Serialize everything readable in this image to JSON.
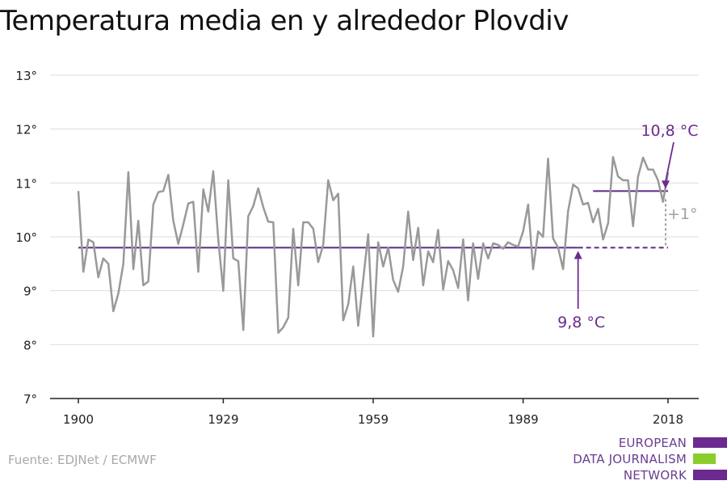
{
  "title": "Temperatura media en y alrededor Plovdiv",
  "source": "Fuente: EDJNet / ECMWF",
  "logo": {
    "line1": "EUROPEAN",
    "line2": "DATA JOURNALISM",
    "line3": "NETWORK",
    "color_purple": "#6b2a90",
    "color_green": "#8ccd2d"
  },
  "colors": {
    "series": "#999999",
    "baseline": "#5b2a86",
    "annotation_purple": "#6b2a90",
    "annotation_grey": "#a0a0a0",
    "grid": "#dddddd",
    "axis_text": "#222222"
  },
  "chart_data": {
    "type": "line",
    "title": "Temperatura media en y alrededor Plovdiv",
    "xlabel": "",
    "ylabel": "",
    "xlim": [
      1900,
      2018
    ],
    "ylim": [
      7,
      13
    ],
    "yticks": [
      7,
      8,
      9,
      10,
      11,
      12,
      13
    ],
    "ytick_labels": [
      "7°",
      "8°",
      "9°",
      "10°",
      "11°",
      "12°",
      "13°"
    ],
    "xticks": [
      1900,
      1929,
      1959,
      1989,
      2018
    ],
    "xtick_labels": [
      "1900",
      "1929",
      "1959",
      "1989",
      "2018"
    ],
    "grid": true,
    "series": [
      {
        "values": [
          [
            1900,
            10.85
          ],
          [
            1901,
            9.35
          ],
          [
            1902,
            9.95
          ],
          [
            1903,
            9.9
          ],
          [
            1904,
            9.25
          ],
          [
            1905,
            9.6
          ],
          [
            1906,
            9.5
          ],
          [
            1907,
            8.62
          ],
          [
            1908,
            8.95
          ],
          [
            1909,
            9.5
          ],
          [
            1910,
            11.2
          ],
          [
            1911,
            9.4
          ],
          [
            1912,
            10.3
          ],
          [
            1913,
            9.1
          ],
          [
            1914,
            9.17
          ],
          [
            1915,
            10.6
          ],
          [
            1916,
            10.83
          ],
          [
            1917,
            10.85
          ],
          [
            1918,
            11.15
          ],
          [
            1919,
            10.3
          ],
          [
            1920,
            9.87
          ],
          [
            1921,
            10.23
          ],
          [
            1922,
            10.62
          ],
          [
            1923,
            10.65
          ],
          [
            1924,
            9.35
          ],
          [
            1925,
            10.88
          ],
          [
            1926,
            10.47
          ],
          [
            1927,
            11.22
          ],
          [
            1928,
            9.95
          ],
          [
            1929,
            9.0
          ],
          [
            1930,
            11.05
          ],
          [
            1931,
            9.6
          ],
          [
            1932,
            9.55
          ],
          [
            1933,
            8.27
          ],
          [
            1934,
            10.38
          ],
          [
            1935,
            10.57
          ],
          [
            1936,
            10.9
          ],
          [
            1937,
            10.55
          ],
          [
            1938,
            10.28
          ],
          [
            1939,
            10.27
          ],
          [
            1940,
            8.22
          ],
          [
            1941,
            8.32
          ],
          [
            1942,
            8.5
          ],
          [
            1943,
            10.15
          ],
          [
            1944,
            9.1
          ],
          [
            1945,
            10.27
          ],
          [
            1946,
            10.27
          ],
          [
            1947,
            10.15
          ],
          [
            1948,
            9.53
          ],
          [
            1949,
            9.85
          ],
          [
            1950,
            11.05
          ],
          [
            1951,
            10.68
          ],
          [
            1952,
            10.8
          ],
          [
            1953,
            8.45
          ],
          [
            1954,
            8.75
          ],
          [
            1955,
            9.45
          ],
          [
            1956,
            8.35
          ],
          [
            1957,
            9.2
          ],
          [
            1958,
            10.05
          ],
          [
            1959,
            8.15
          ],
          [
            1960,
            9.9
          ],
          [
            1961,
            9.45
          ],
          [
            1962,
            9.8
          ],
          [
            1963,
            9.2
          ],
          [
            1964,
            8.98
          ],
          [
            1965,
            9.45
          ],
          [
            1966,
            10.47
          ],
          [
            1967,
            9.57
          ],
          [
            1968,
            10.17
          ],
          [
            1969,
            9.1
          ],
          [
            1970,
            9.73
          ],
          [
            1971,
            9.53
          ],
          [
            1972,
            10.13
          ],
          [
            1973,
            9.02
          ],
          [
            1974,
            9.55
          ],
          [
            1975,
            9.38
          ],
          [
            1976,
            9.05
          ],
          [
            1977,
            9.95
          ],
          [
            1978,
            8.82
          ],
          [
            1979,
            9.88
          ],
          [
            1980,
            9.22
          ],
          [
            1981,
            9.88
          ],
          [
            1982,
            9.6
          ],
          [
            1983,
            9.88
          ],
          [
            1984,
            9.85
          ],
          [
            1985,
            9.78
          ],
          [
            1986,
            9.9
          ],
          [
            1987,
            9.85
          ],
          [
            1988,
            9.82
          ],
          [
            1989,
            10.1
          ],
          [
            1990,
            10.6
          ],
          [
            1991,
            9.4
          ],
          [
            1992,
            10.1
          ],
          [
            1993,
            10.0
          ],
          [
            1994,
            11.45
          ],
          [
            1995,
            9.97
          ],
          [
            1996,
            9.8
          ],
          [
            1997,
            9.4
          ],
          [
            1998,
            10.48
          ],
          [
            1999,
            10.97
          ],
          [
            2000,
            10.9
          ],
          [
            2001,
            10.6
          ],
          [
            2002,
            10.63
          ],
          [
            2003,
            10.27
          ],
          [
            2004,
            10.52
          ],
          [
            2005,
            9.95
          ],
          [
            2006,
            10.25
          ],
          [
            2007,
            11.48
          ],
          [
            2008,
            11.12
          ],
          [
            2009,
            11.05
          ],
          [
            2010,
            11.05
          ],
          [
            2011,
            10.2
          ],
          [
            2012,
            11.12
          ],
          [
            2013,
            11.47
          ],
          [
            2014,
            11.25
          ],
          [
            2015,
            11.25
          ],
          [
            2016,
            11.05
          ],
          [
            2017,
            10.65
          ],
          [
            2018,
            11.2
          ]
        ]
      }
    ],
    "reference_lines": [
      {
        "label": "9,8 °C",
        "value": 9.8,
        "x_start": 1900,
        "x_end": 2000,
        "dashed_until": 2018
      },
      {
        "label": "10,8 °C",
        "value": 10.85,
        "x_start": 2003,
        "x_end": 2018
      }
    ],
    "annotations": [
      {
        "text": "9,8 °C",
        "x": 2000,
        "y": 9.8
      },
      {
        "text": "10,8 °C",
        "x": 2018,
        "y": 10.85
      },
      {
        "text": "+1°",
        "x": 2018,
        "y": 10.3
      }
    ]
  }
}
